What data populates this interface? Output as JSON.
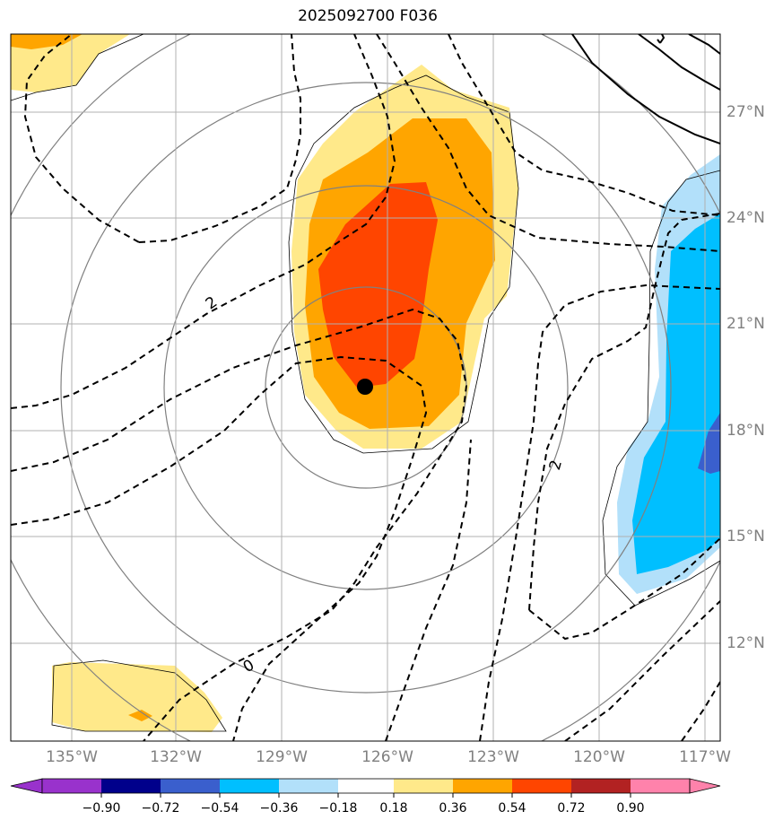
{
  "title": "2025092700 F036",
  "lon_labels": [
    "135°W",
    "132°W",
    "129°W",
    "126°W",
    "123°W",
    "120°W",
    "117°W"
  ],
  "lat_labels": [
    "27°N",
    "24°N",
    "21°N",
    "18°N",
    "15°N",
    "12°N"
  ],
  "contour_labels": [
    "2",
    "2",
    "0"
  ],
  "colorbar": {
    "tick_labels": [
      "−0.90",
      "−0.72",
      "−0.54",
      "−0.36",
      "−0.18",
      "0.18",
      "0.36",
      "0.54",
      "0.72",
      "0.90"
    ],
    "colors": [
      "#9932cc",
      "#00008b",
      "#3a5fcd",
      "#00bfff",
      "#b2e0fa",
      "#ffffff",
      "#ffe98a",
      "#ffa500",
      "#ff4500",
      "#b22222",
      "#ff82ab"
    ]
  },
  "marker": {
    "type": "storm-center-dot",
    "color": "#000000"
  }
}
